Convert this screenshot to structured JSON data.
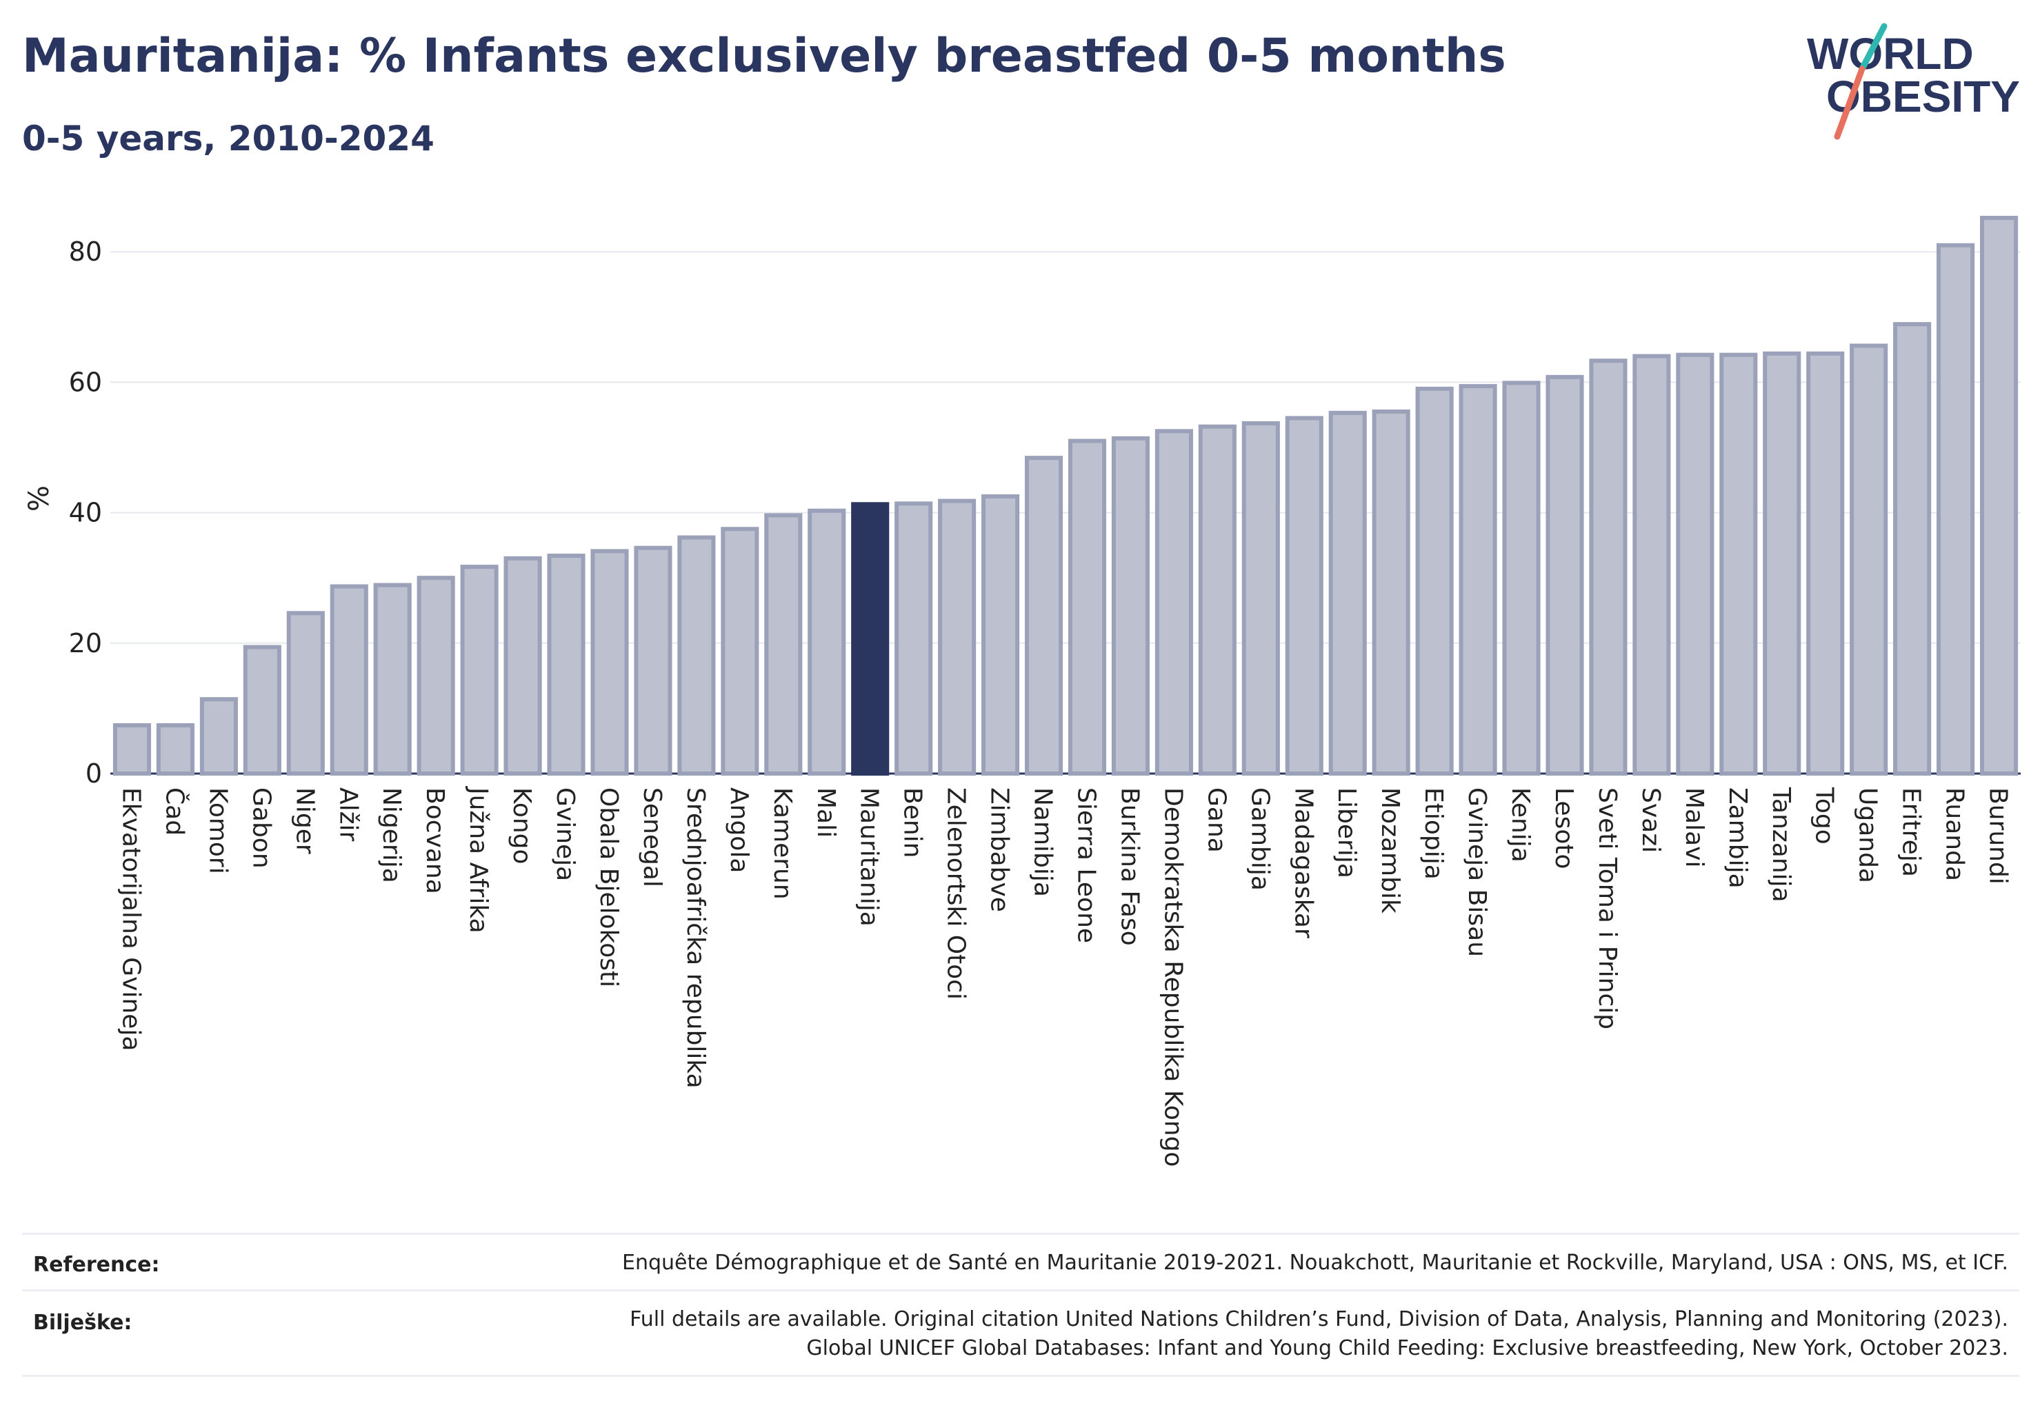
{
  "header": {
    "title": "Mauritanija: % Infants exclusively breastfed 0-5 months",
    "subtitle": "0-5 years, 2010-2024"
  },
  "logo": {
    "line1": "WORLD",
    "line2": "OBESITY",
    "colors": {
      "text": "#2a3560",
      "accent_teal": "#2fb8b0",
      "accent_coral": "#e8705e"
    }
  },
  "chart_data": {
    "type": "bar",
    "ylabel": "%",
    "ylim": [
      0,
      88
    ],
    "yticks": [
      0,
      20,
      40,
      60,
      80
    ],
    "grid": true,
    "highlight": "Mauritanija",
    "colors": {
      "bar": "#bcc0cf",
      "bar_edge": "#9ba1b8",
      "highlight": "#2a3560"
    },
    "categories": [
      "Ekvatorijalna Gvineja",
      "Čad",
      "Komori",
      "Gabon",
      "Niger",
      "Alžir",
      "Nigerija",
      "Bocvana",
      "Južna Afrika",
      "Kongo",
      "Gvineja",
      "Obala Bjelokosti",
      "Senegal",
      "Srednjoafrička republika",
      "Angola",
      "Kamerun",
      "Mali",
      "Mauritanija",
      "Benin",
      "Zelenortski Otoci",
      "Zimbabve",
      "Namibija",
      "Sierra Leone",
      "Burkina Faso",
      "Demokratska Republika Kongo",
      "Gana",
      "Gambija",
      "Madagaskar",
      "Liberija",
      "Mozambik",
      "Etiopija",
      "Gvineja Bisau",
      "Kenija",
      "Lesoto",
      "Sveti Toma i Princip",
      "Svazi",
      "Malavi",
      "Zambija",
      "Tanzanija",
      "Togo",
      "Uganda",
      "Eritreja",
      "Ruanda",
      "Burundi"
    ],
    "values": [
      7.4,
      7.4,
      11.4,
      19.4,
      24.6,
      28.7,
      28.9,
      30.0,
      31.7,
      33.0,
      33.4,
      34.1,
      34.6,
      36.2,
      37.5,
      39.6,
      40.3,
      41.3,
      41.4,
      41.8,
      42.5,
      48.4,
      51.0,
      51.4,
      52.5,
      53.2,
      53.7,
      54.5,
      55.3,
      55.5,
      59.0,
      59.4,
      59.9,
      60.8,
      63.3,
      64.0,
      64.2,
      64.2,
      64.4,
      64.4,
      65.6,
      68.9,
      81.0,
      85.2
    ]
  },
  "footer": {
    "reference_label": "Reference:",
    "reference_text": "Enquête Démographique et de Santé en Mauritanie 2019-2021. Nouakchott, Mauritanie et Rockville, Maryland, USA : ONS, MS, et ICF.",
    "notes_label": "Bilješke:",
    "notes_line1": "Full details are available. Original citation United Nations Children’s Fund, Division of Data, Analysis, Planning and Monitoring (2023).",
    "notes_line2": "Global UNICEF Global Databases: Infant and Young Child Feeding: Exclusive breastfeeding, New York, October 2023."
  }
}
